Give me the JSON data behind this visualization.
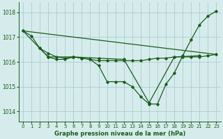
{
  "background_color": "#d6ecec",
  "grid_color": "#aacccc",
  "line_color": "#1a5c1a",
  "title": "Graphe pression niveau de la mer (hPa)",
  "xlim": [
    -0.5,
    23.5
  ],
  "ylim": [
    1013.6,
    1018.4
  ],
  "yticks": [
    1014,
    1015,
    1016,
    1017,
    1018
  ],
  "xticks": [
    0,
    1,
    2,
    3,
    4,
    5,
    6,
    7,
    8,
    9,
    10,
    11,
    12,
    13,
    14,
    15,
    16,
    17,
    18,
    19,
    20,
    21,
    22,
    23
  ],
  "series": [
    {
      "x": [
        0,
        1,
        2,
        3,
        4,
        5,
        6,
        7,
        8,
        9,
        10,
        11,
        12,
        13,
        14,
        15,
        16,
        17,
        18,
        19,
        20,
        21,
        22,
        23
      ],
      "y": [
        1017.25,
        1017.05,
        1016.55,
        1016.2,
        1016.1,
        1016.1,
        1016.2,
        1016.15,
        1016.1,
        1015.85,
        1015.2,
        1015.2,
        1015.2,
        1015.0,
        1014.6,
        1014.3,
        1014.3,
        1015.1,
        1015.55,
        1016.25,
        1016.9,
        1017.5,
        1017.85,
        1018.05
      ]
    },
    {
      "x": [
        0,
        23
      ],
      "y": [
        1017.25,
        1016.3
      ]
    },
    {
      "x": [
        2,
        3,
        4,
        5,
        6,
        7,
        8,
        9,
        10,
        11,
        12,
        13,
        14,
        15,
        16,
        17,
        18,
        19,
        20,
        21,
        22,
        23
      ],
      "y": [
        1016.55,
        1016.35,
        1016.2,
        1016.15,
        1016.2,
        1016.15,
        1016.1,
        1016.05,
        1016.05,
        1016.05,
        1016.05,
        1016.05,
        1016.05,
        1016.1,
        1016.15,
        1016.15,
        1016.2,
        1016.2,
        1016.2,
        1016.2,
        1016.25,
        1016.3
      ]
    },
    {
      "comment": "3-hourly synoptic line with markers at 0,3,6,9,12,15,18,21",
      "x": [
        0,
        3,
        6,
        9,
        12,
        15,
        18,
        21
      ],
      "y": [
        1017.25,
        1016.2,
        1016.2,
        1016.15,
        1016.1,
        1014.35,
        1016.2,
        1016.25
      ]
    }
  ]
}
